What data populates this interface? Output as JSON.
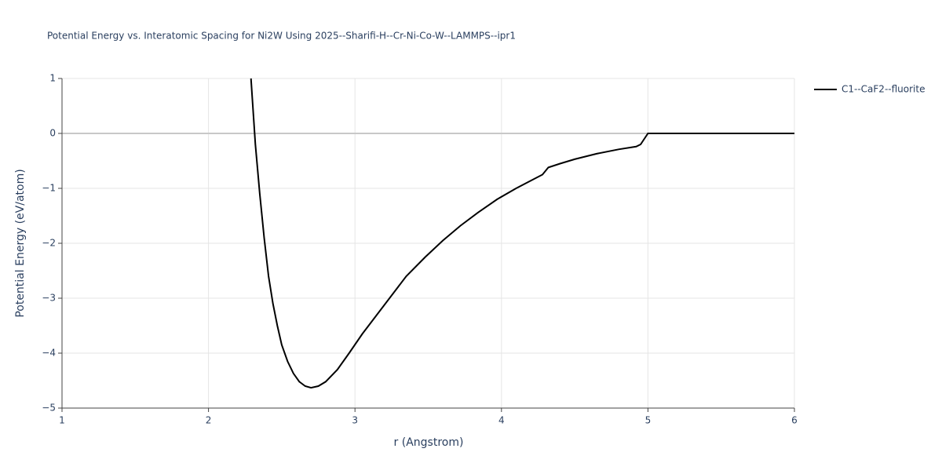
{
  "chart_data": {
    "type": "line",
    "title": "Potential Energy vs. Interatomic Spacing for Ni2W Using 2025--Sharifi-H--Cr-Ni-Co-W--LAMMPS--ipr1",
    "x_label": "r (Angstrom)",
    "y_label": "Potential Energy (eV/atom)",
    "xlim": [
      1,
      6
    ],
    "xticks": [
      1,
      2,
      3,
      4,
      5,
      6
    ],
    "ylim": [
      -5,
      1
    ],
    "yticks": [
      {
        "value": -5,
        "label": "−5"
      },
      {
        "value": -4,
        "label": "−4"
      },
      {
        "value": -3,
        "label": "−3"
      },
      {
        "value": -2,
        "label": "−2"
      },
      {
        "value": -1,
        "label": "−1"
      },
      0,
      1
    ],
    "grid": true,
    "legend": "right",
    "series": [
      {
        "name": "C1--CaF2--fluorite",
        "color": "#000000",
        "x": [
          2.29,
          2.32,
          2.35,
          2.38,
          2.41,
          2.44,
          2.47,
          2.5,
          2.54,
          2.58,
          2.62,
          2.66,
          2.7,
          2.75,
          2.8,
          2.88,
          2.96,
          3.05,
          3.15,
          3.25,
          3.35,
          3.48,
          3.6,
          3.72,
          3.84,
          3.97,
          4.1,
          4.2,
          4.28,
          4.32,
          4.4,
          4.5,
          4.65,
          4.8,
          4.92,
          4.95,
          5.0,
          6.0
        ],
        "values": [
          1.0,
          -0.2,
          -1.1,
          -1.9,
          -2.6,
          -3.1,
          -3.5,
          -3.85,
          -4.15,
          -4.37,
          -4.52,
          -4.6,
          -4.63,
          -4.6,
          -4.52,
          -4.3,
          -4.0,
          -3.65,
          -3.3,
          -2.95,
          -2.6,
          -2.25,
          -1.95,
          -1.68,
          -1.44,
          -1.2,
          -1.0,
          -0.86,
          -0.75,
          -0.62,
          -0.55,
          -0.47,
          -0.37,
          -0.29,
          -0.24,
          -0.2,
          0,
          0
        ]
      }
    ]
  }
}
